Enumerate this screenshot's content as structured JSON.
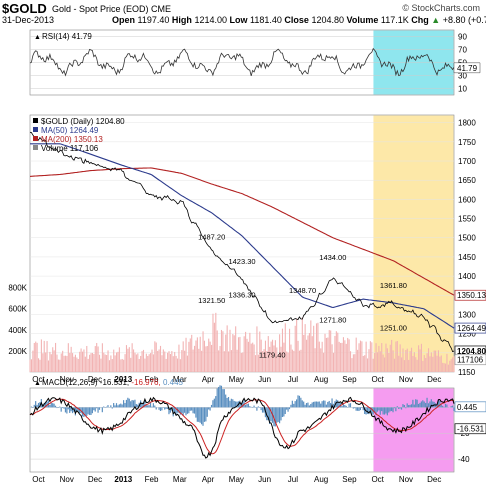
{
  "header": {
    "symbol": "$GOLD",
    "description": "Gold - Spot Price (EOD) CME",
    "date": "31-Dec-2013",
    "open_label": "Open",
    "open": "1197.40",
    "high_label": "High",
    "high": "1214.00",
    "low_label": "Low",
    "low": "1181.40",
    "close_label": "Close",
    "close": "1204.80",
    "volume_label": "Volume",
    "volume": "117.1K",
    "chg_label": "Chg",
    "chg": "+8.80 (+0.74%)",
    "source": "© StockCharts.com",
    "up_arrow": "▲"
  },
  "colors": {
    "price": "#000000",
    "ma50": "#2b3a8c",
    "ma200": "#b22222",
    "volume": "#f2b3b3",
    "rsi": "#333333",
    "rsi_fill": "#a05050",
    "macd": "#000000",
    "signal": "#cc2222",
    "hist": "#5a8fc0",
    "highlight_rsi": "#8fe6ee",
    "highlight_price": "#fde8a8",
    "highlight_macd": "#f59cf0"
  },
  "rsi": {
    "label": "RSI(14) 41.79",
    "ticks": [
      "90",
      "70",
      "50",
      "30",
      "10"
    ],
    "value_tag": "41.79"
  },
  "price_panel": {
    "legend": [
      "$GOLD (Daily) 1204.80",
      "MA(50) 1264.49",
      "MA(200) 1350.13",
      "Volume 117,106"
    ],
    "ticks": [
      "1800",
      "1750",
      "1700",
      "1650",
      "1600",
      "1550",
      "1500",
      "1450",
      "1400",
      "1350",
      "1300",
      "1250",
      "1200",
      "1150"
    ],
    "volume_ticks": [
      "800K",
      "600K",
      "400K",
      "200K"
    ],
    "tags": [
      "1350.13",
      "1264.49",
      "1204.80",
      "117106"
    ],
    "annotations": [
      "1487.20",
      "1423.30",
      "1434.00",
      "1361.80",
      "1321.50",
      "1336.30",
      "1348.70",
      "1271.80",
      "1251.00",
      "1179.40"
    ]
  },
  "macd": {
    "label_prefix": "MACD(12,26,9)",
    "macd_value": "-16.531",
    "signal_value": "-16.976",
    "hist_value": "0.445",
    "ticks": [
      "0",
      "-20",
      "-40"
    ],
    "tags": [
      "0.445",
      "-16.531"
    ]
  },
  "x_axis": {
    "labels": [
      "Oct",
      "Nov",
      "Dec",
      "2013",
      "Feb",
      "Mar",
      "Apr",
      "May",
      "Jun",
      "Jul",
      "Aug",
      "Sep",
      "Oct",
      "Nov",
      "Dec"
    ]
  },
  "chart_data": {
    "type": "line",
    "title": "$GOLD Gold - Spot Price (EOD) CME",
    "x": [
      "2012-10",
      "2012-11",
      "2012-12",
      "2013-01",
      "2013-02",
      "2013-03",
      "2013-04",
      "2013-05",
      "2013-06",
      "2013-07",
      "2013-08",
      "2013-09",
      "2013-10",
      "2013-11",
      "2013-12"
    ],
    "series": [
      {
        "name": "$GOLD (Daily)",
        "values": [
          1775,
          1725,
          1695,
          1675,
          1610,
          1595,
          1470,
          1395,
          1275,
          1290,
          1395,
          1330,
          1325,
          1290,
          1204.8
        ]
      },
      {
        "name": "MA(50)",
        "values": [
          1745,
          1745,
          1718,
          1690,
          1665,
          1610,
          1565,
          1505,
          1425,
          1345,
          1318,
          1340,
          1330,
          1315,
          1264.49
        ]
      },
      {
        "name": "MA(200)",
        "values": [
          1660,
          1665,
          1675,
          1680,
          1682,
          1668,
          1640,
          1615,
          1580,
          1540,
          1500,
          1470,
          1440,
          1395,
          1350.13
        ]
      },
      {
        "name": "Volume",
        "values": [
          230000,
          210000,
          200000,
          190000,
          210000,
          200000,
          420000,
          300000,
          320000,
          380000,
          300000,
          240000,
          220000,
          200000,
          117106
        ]
      }
    ],
    "ylim": [
      1150,
      1820
    ],
    "rsi_range": [
      0,
      100
    ],
    "macd_range": [
      -50,
      15
    ],
    "annotations": [
      {
        "text": "1487.20",
        "x": "2013-04",
        "y": 1487.2
      },
      {
        "text": "1423.30",
        "x": "2013-05",
        "y": 1423.3
      },
      {
        "text": "1434.00",
        "x": "2013-08",
        "y": 1434.0
      },
      {
        "text": "1361.80",
        "x": "2013-10",
        "y": 1361.8
      },
      {
        "text": "1321.50",
        "x": "2013-04",
        "y": 1321.5
      },
      {
        "text": "1336.30",
        "x": "2013-05",
        "y": 1336.3
      },
      {
        "text": "1348.70",
        "x": "2013-07",
        "y": 1348.7
      },
      {
        "text": "1271.80",
        "x": "2013-08",
        "y": 1271.8
      },
      {
        "text": "1251.00",
        "x": "2013-10",
        "y": 1251.0
      },
      {
        "text": "1179.40",
        "x": "2013-06",
        "y": 1179.4
      }
    ]
  }
}
